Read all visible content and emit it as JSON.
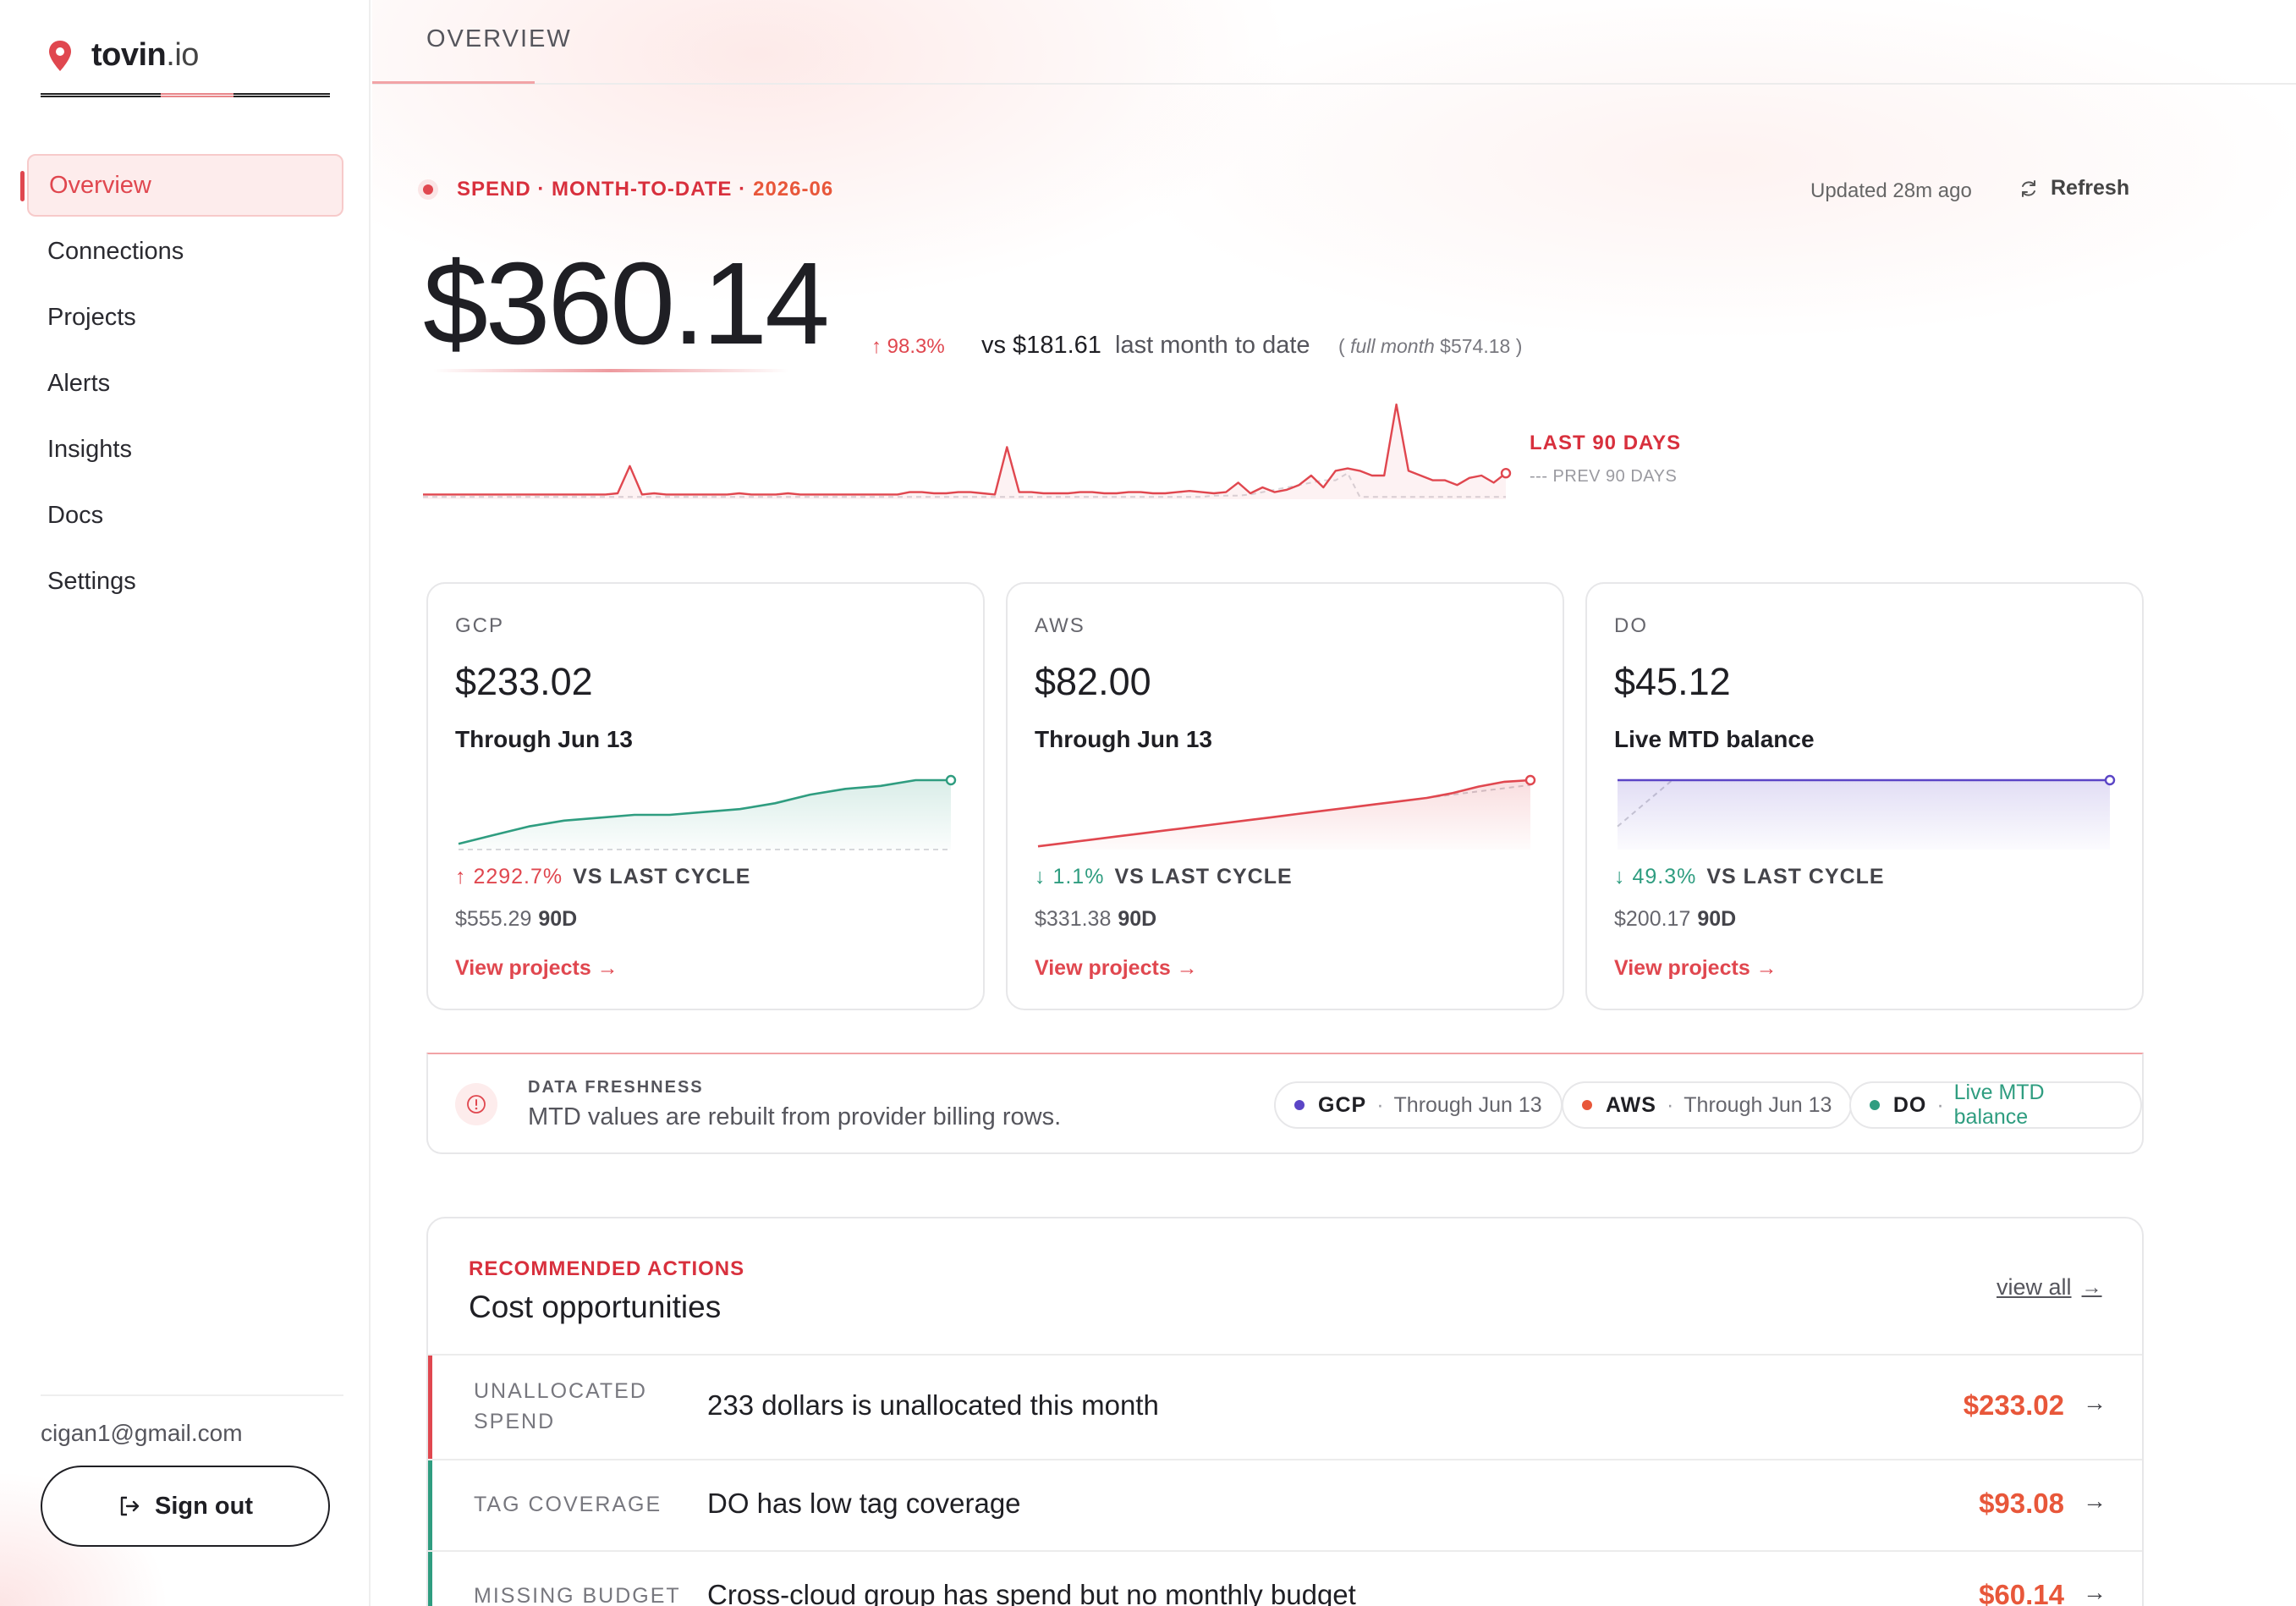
{
  "brand": {
    "name": "tovin",
    "tld": ".io"
  },
  "sidebar": {
    "items": [
      {
        "label": "Overview",
        "active": true
      },
      {
        "label": "Connections"
      },
      {
        "label": "Projects"
      },
      {
        "label": "Alerts"
      },
      {
        "label": "Insights"
      },
      {
        "label": "Docs"
      },
      {
        "label": "Settings"
      }
    ],
    "user_email": "cigan1@gmail.com",
    "signout_label": "Sign out"
  },
  "header": {
    "tab": "OVERVIEW"
  },
  "spend": {
    "label": "SPEND · MONTH-TO-DATE ·",
    "period": "2026-06",
    "updated": "Updated 28m ago",
    "refresh_label": "Refresh",
    "amount": "$360.14",
    "delta": "↑ 98.3%",
    "vs_amount": "vs $181.61",
    "vs_label": "last month to date",
    "full_month_label": "full month",
    "full_month_value": "$574.18",
    "legend_last": "LAST 90 DAYS",
    "legend_prev": "--- PREV 90 DAYS"
  },
  "trend": {
    "current": [
      4,
      4,
      4,
      4,
      4,
      4,
      4,
      4,
      4,
      4,
      4,
      4,
      4,
      4,
      4,
      4,
      5,
      28,
      4,
      5,
      4,
      4,
      4,
      4,
      4,
      4,
      5,
      4,
      4,
      4,
      5,
      4,
      4,
      4,
      4,
      4,
      4,
      4,
      4,
      4,
      6,
      6,
      5,
      5,
      6,
      6,
      5,
      4,
      44,
      6,
      6,
      5,
      5,
      5,
      6,
      6,
      5,
      5,
      6,
      6,
      5,
      5,
      6,
      7,
      6,
      5,
      6,
      14,
      5,
      10,
      6,
      8,
      12,
      20,
      10,
      24,
      26,
      24,
      20,
      20,
      80,
      24,
      20,
      16,
      16,
      12,
      18,
      20,
      14,
      22
    ],
    "previous": [
      2,
      2,
      2,
      2,
      2,
      2,
      2,
      2,
      2,
      2,
      2,
      2,
      2,
      2,
      2,
      2,
      2,
      2,
      2,
      2,
      2,
      2,
      2,
      2,
      2,
      2,
      2,
      2,
      2,
      2,
      2,
      2,
      2,
      2,
      2,
      2,
      2,
      2,
      2,
      2,
      2,
      2,
      2,
      2,
      2,
      2,
      2,
      2,
      2,
      2,
      2,
      2,
      2,
      2,
      2,
      2,
      2,
      2,
      2,
      2,
      2,
      2,
      2,
      2,
      2,
      3,
      3,
      3,
      4,
      6,
      8,
      10,
      12,
      14,
      16,
      16,
      22,
      2,
      2,
      2,
      2,
      2,
      2,
      2,
      2,
      2,
      2,
      2,
      2,
      2
    ]
  },
  "cards": [
    {
      "provider": "GCP",
      "amount": "$233.02",
      "sub": "Through Jun 13",
      "delta": "↑ 2292.7%",
      "delta_dir": "up",
      "delta_label": "VS LAST CYCLE",
      "ninety": "$555.29",
      "ninety_label": "90D",
      "link": "View projects",
      "color": "#2f9d80",
      "spark": [
        2,
        5,
        8,
        10,
        11,
        12,
        12,
        13,
        14,
        16,
        19,
        21,
        22,
        24,
        24
      ],
      "spark_prev": []
    },
    {
      "provider": "AWS",
      "amount": "$82.00",
      "sub": "Through Jun 13",
      "delta": "↓ 1.1%",
      "delta_dir": "down",
      "delta_label": "VS LAST CYCLE",
      "ninety": "$331.38",
      "ninety_label": "90D",
      "link": "View projects",
      "color": "#e0474f",
      "spark": [
        2,
        4,
        6,
        8,
        10,
        12,
        14,
        16,
        18,
        20,
        22,
        24,
        26,
        28,
        30,
        32,
        35,
        39,
        42,
        43
      ],
      "spark_prev": [
        2,
        4,
        6,
        8,
        10,
        12,
        14,
        16,
        18,
        20,
        22,
        24,
        26,
        28,
        30,
        32,
        34,
        36,
        38,
        40
      ]
    },
    {
      "provider": "DO",
      "amount": "$45.12",
      "sub": "Live MTD balance",
      "delta": "↓ 49.3%",
      "delta_dir": "down",
      "delta_label": "VS LAST CYCLE",
      "ninety": "$200.17",
      "ninety_label": "90D",
      "link": "View projects",
      "color": "#5b45c6",
      "spark": [
        30,
        30,
        30,
        30,
        30,
        30,
        30,
        30,
        30,
        30
      ],
      "spark_prev": [
        10,
        30,
        30,
        30,
        30,
        30,
        30,
        30,
        30,
        30
      ]
    }
  ],
  "freshness": {
    "title": "DATA FRESHNESS",
    "desc": "MTD values are rebuilt from provider billing rows.",
    "chips": [
      {
        "name": "GCP",
        "value": "Through Jun 13",
        "dot": "#5b45c6"
      },
      {
        "name": "AWS",
        "value": "Through Jun 13",
        "dot": "#e8573a"
      },
      {
        "name": "DO",
        "value": "Live MTD balance",
        "dot": "#2f9d80"
      }
    ]
  },
  "actions": {
    "kicker": "RECOMMENDED ACTIONS",
    "title": "Cost opportunities",
    "view_all": "view all",
    "rows": [
      {
        "kind_line1": "UNALLOCATED",
        "kind_line2": "SPEND",
        "text": "233 dollars is unallocated this month",
        "amount": "$233.02",
        "bar": "#e0474f"
      },
      {
        "kind_line1": "TAG COVERAGE",
        "kind_line2": "",
        "text": "DO has low tag coverage",
        "amount": "$93.08",
        "bar": "#2f9d80"
      },
      {
        "kind_line1": "MISSING BUDGET",
        "kind_line2": "",
        "text": "Cross-cloud group has spend but no monthly budget",
        "amount": "$60.14",
        "bar": "#2f9d80"
      }
    ]
  },
  "colors": {
    "accent": "#e0474f",
    "accent_orange": "#e8573a",
    "positive": "#2f9d80",
    "violet": "#5b45c6"
  }
}
